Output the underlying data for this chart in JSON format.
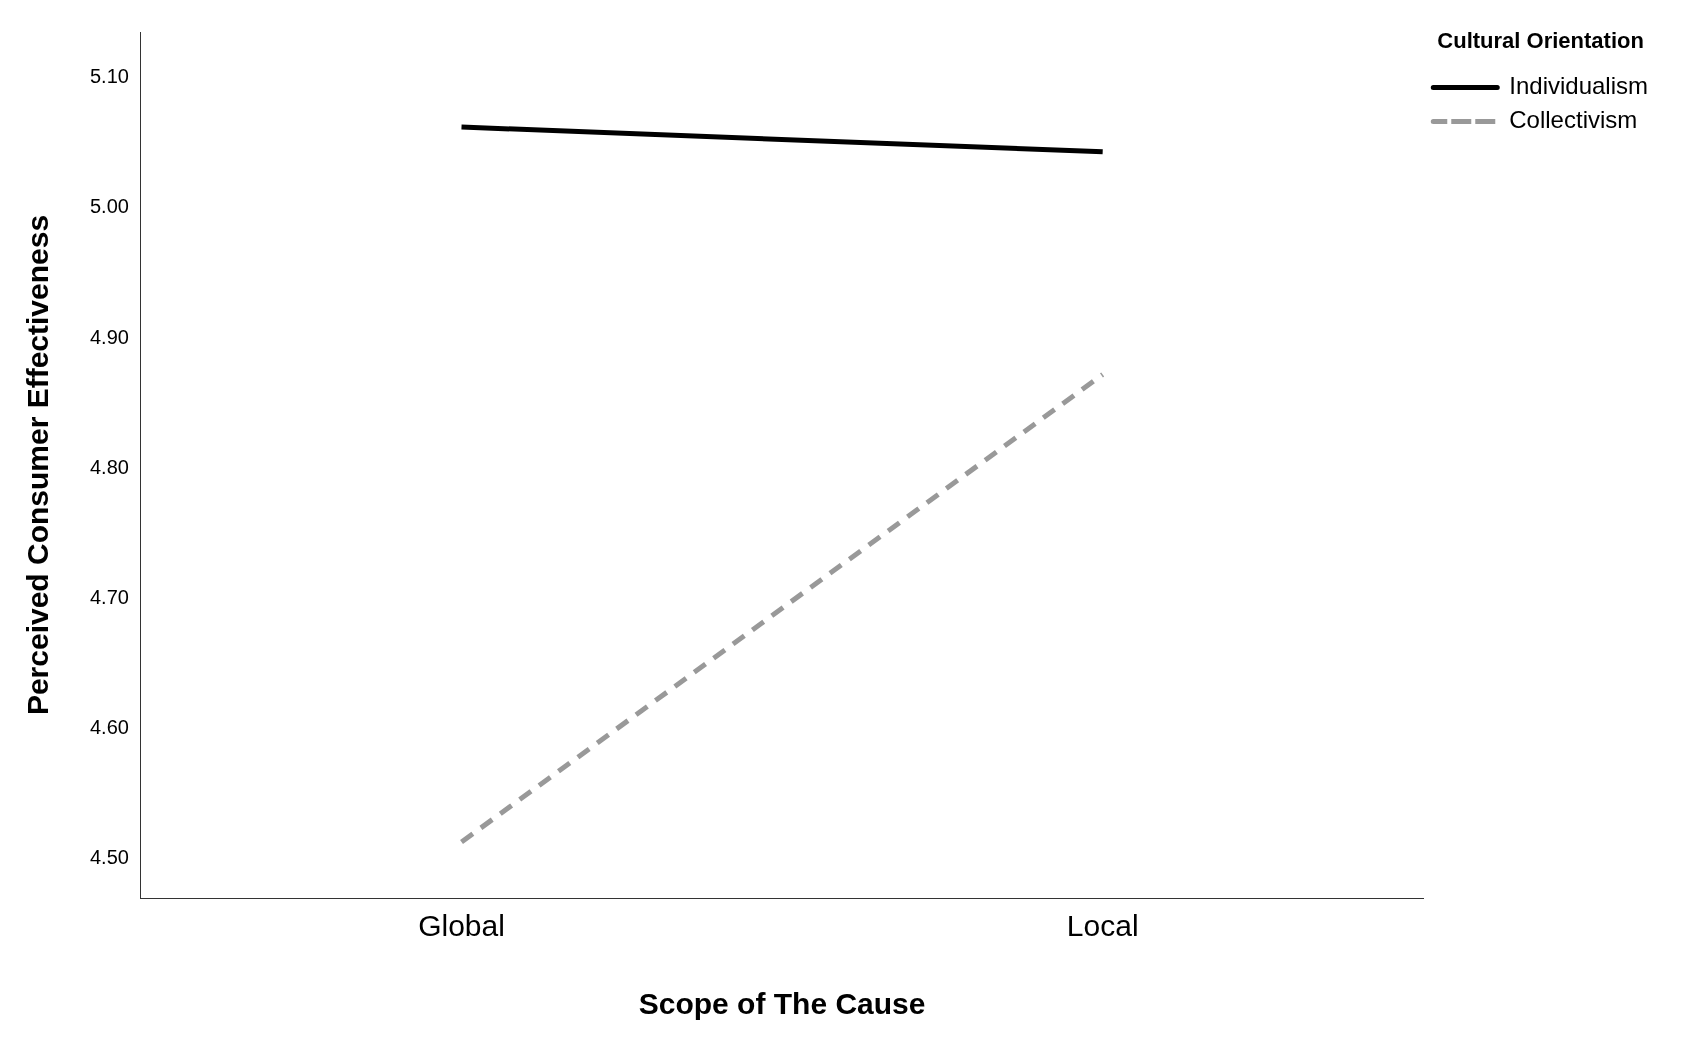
{
  "chart_data": {
    "type": "line",
    "xlabel": "Scope of The Cause",
    "ylabel": "Perceived Consumer Effectiveness",
    "legend_title": "Cultural Orientation",
    "categories": [
      "Global",
      "Local"
    ],
    "series": [
      {
        "name": "Individualism",
        "color": "#000000",
        "values": [
          5.062,
          5.043
        ],
        "line_style": "solid"
      },
      {
        "name": "Collectivism",
        "color": "#999999",
        "values": [
          4.513,
          4.872
        ],
        "line_style": "dashed"
      }
    ],
    "ylim": [
      4.47,
      5.135
    ],
    "yticks": [
      {
        "value": 4.5,
        "label": "4.50"
      },
      {
        "value": 4.6,
        "label": "4.60"
      },
      {
        "value": 4.7,
        "label": "4.70"
      },
      {
        "value": 4.8,
        "label": "4.80"
      },
      {
        "value": 4.9,
        "label": "4.90"
      },
      {
        "value": 5.0,
        "label": "5.00"
      },
      {
        "value": 5.1,
        "label": "5.10"
      }
    ],
    "grid": false,
    "legend": "right",
    "marker": "none"
  }
}
